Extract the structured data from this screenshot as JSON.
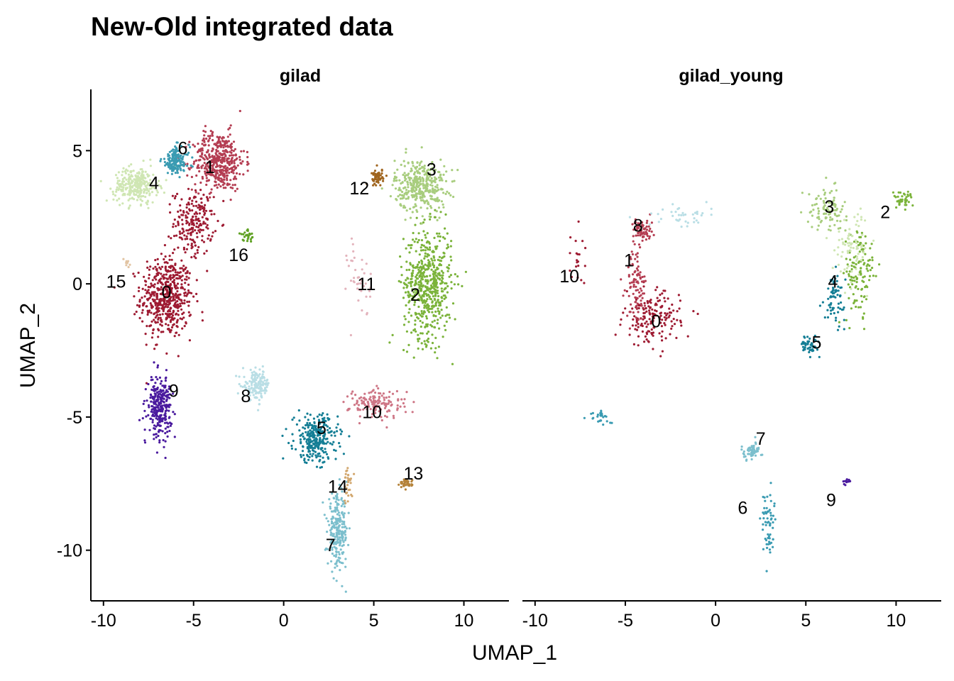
{
  "chart_data": {
    "type": "scatter",
    "title": "New-Old integrated data",
    "xlabel": "UMAP_1",
    "ylabel": "UMAP_2",
    "xlim": [
      -10.7,
      12.5
    ],
    "ylim": [
      -11.9,
      7.3
    ],
    "x_ticks": [
      -10,
      -5,
      0,
      5,
      10
    ],
    "x_tick_labels": [
      "-10",
      "-5",
      "0",
      "5",
      "10"
    ],
    "y_ticks": [
      5,
      0,
      -5,
      -10
    ],
    "y_tick_labels": [
      "5",
      "0",
      "-5",
      "-10"
    ],
    "grid": false,
    "legend": "none",
    "panels": [
      {
        "name": "gilad",
        "clusters": [
          {
            "id": "0",
            "color": "#9E1B32",
            "center": [
              -6.5,
              -0.5
            ],
            "spread": [
              1.3,
              1.4
            ],
            "n": 520
          },
          {
            "id": "0",
            "color": "#9E1B32",
            "center": [
              -5.0,
              2.3
            ],
            "spread": [
              1.0,
              1.1
            ],
            "n": 200
          },
          {
            "id": "1",
            "color": "#B43D52",
            "center": [
              -3.6,
              4.6
            ],
            "spread": [
              1.3,
              1.0
            ],
            "n": 430
          },
          {
            "id": "2",
            "color": "#7BB33A",
            "center": [
              8.0,
              0.0
            ],
            "spread": [
              1.2,
              1.9
            ],
            "n": 560
          },
          {
            "id": "3",
            "color": "#A8CD7E",
            "center": [
              7.6,
              3.7
            ],
            "spread": [
              1.3,
              0.9
            ],
            "n": 360
          },
          {
            "id": "4",
            "color": "#CFE6B3",
            "center": [
              -8.2,
              3.7
            ],
            "spread": [
              1.1,
              0.6
            ],
            "n": 290
          },
          {
            "id": "5",
            "color": "#147E95",
            "center": [
              1.8,
              -5.8
            ],
            "spread": [
              1.1,
              0.8
            ],
            "n": 280
          },
          {
            "id": "6",
            "color": "#3A9BB2",
            "center": [
              -6.0,
              4.6
            ],
            "spread": [
              0.7,
              0.5
            ],
            "n": 150
          },
          {
            "id": "7",
            "color": "#7CBFCD",
            "center": [
              3.0,
              -9.3
            ],
            "spread": [
              0.5,
              1.2
            ],
            "n": 230
          },
          {
            "id": "8",
            "color": "#B9DEE5",
            "center": [
              -1.5,
              -3.8
            ],
            "spread": [
              0.7,
              0.5
            ],
            "n": 150
          },
          {
            "id": "9",
            "color": "#4A1A9E",
            "center": [
              -6.9,
              -4.6
            ],
            "spread": [
              0.6,
              1.0
            ],
            "n": 280
          },
          {
            "id": "10",
            "color": "#CE7686",
            "center": [
              5.2,
              -4.5
            ],
            "spread": [
              1.4,
              0.5
            ],
            "n": 150
          },
          {
            "id": "11",
            "color": "#E3B3BC",
            "center": [
              4.2,
              0.2
            ],
            "spread": [
              0.6,
              1.4
            ],
            "n": 40
          },
          {
            "id": "12",
            "color": "#A0651F",
            "center": [
              5.2,
              4.0
            ],
            "spread": [
              0.3,
              0.3
            ],
            "n": 50
          },
          {
            "id": "13",
            "color": "#B5833A",
            "center": [
              6.8,
              -7.5
            ],
            "spread": [
              0.3,
              0.15
            ],
            "n": 40
          },
          {
            "id": "14",
            "color": "#D2A76E",
            "center": [
              3.6,
              -7.6
            ],
            "spread": [
              0.3,
              0.6
            ],
            "n": 30
          },
          {
            "id": "15",
            "color": "#E2C4A3",
            "center": [
              -8.7,
              0.8
            ],
            "spread": [
              0.2,
              0.2
            ],
            "n": 8
          },
          {
            "id": "16",
            "color": "#5FA123",
            "center": [
              -2.0,
              1.8
            ],
            "spread": [
              0.4,
              0.2
            ],
            "n": 25
          }
        ],
        "labels": [
          {
            "text": "0",
            "x": -6.5,
            "y": -0.3
          },
          {
            "text": "1",
            "x": -4.1,
            "y": 4.4
          },
          {
            "text": "2",
            "x": 7.3,
            "y": -0.4
          },
          {
            "text": "3",
            "x": 8.2,
            "y": 4.3
          },
          {
            "text": "4",
            "x": -7.2,
            "y": 3.8
          },
          {
            "text": "5",
            "x": 2.1,
            "y": -5.4
          },
          {
            "text": "6",
            "x": -5.6,
            "y": 5.1
          },
          {
            "text": "7",
            "x": 2.6,
            "y": -9.8
          },
          {
            "text": "8",
            "x": -2.1,
            "y": -4.2
          },
          {
            "text": "9",
            "x": -6.1,
            "y": -4.0
          },
          {
            "text": "10",
            "x": 4.9,
            "y": -4.8
          },
          {
            "text": "11",
            "x": 4.6,
            "y": 0.0
          },
          {
            "text": "12",
            "x": 4.2,
            "y": 3.6
          },
          {
            "text": "13",
            "x": 7.2,
            "y": -7.1
          },
          {
            "text": "14",
            "x": 3.0,
            "y": -7.6
          },
          {
            "text": "15",
            "x": -9.3,
            "y": 0.1
          },
          {
            "text": "16",
            "x": -2.5,
            "y": 1.1
          }
        ]
      },
      {
        "name": "gilad_young",
        "clusters": [
          {
            "id": "0",
            "color": "#9E1B32",
            "center": [
              -3.5,
              -1.3
            ],
            "spread": [
              1.4,
              0.9
            ],
            "n": 170
          },
          {
            "id": "1",
            "color": "#B43D52",
            "center": [
              -4.4,
              0.0
            ],
            "spread": [
              0.5,
              1.2
            ],
            "n": 90
          },
          {
            "id": "2",
            "color": "#7BB33A",
            "center": [
              8.0,
              0.3
            ],
            "spread": [
              0.8,
              1.6
            ],
            "n": 120
          },
          {
            "id": "2",
            "color": "#7BB33A",
            "center": [
              10.4,
              3.2
            ],
            "spread": [
              0.5,
              0.3
            ],
            "n": 40
          },
          {
            "id": "3",
            "color": "#A8CD7E",
            "center": [
              6.2,
              2.8
            ],
            "spread": [
              1.0,
              0.7
            ],
            "n": 100
          },
          {
            "id": "3",
            "color": "#CFE6B3",
            "center": [
              7.6,
              1.5
            ],
            "spread": [
              0.9,
              1.2
            ],
            "n": 70
          },
          {
            "id": "4",
            "color": "#147E95",
            "center": [
              6.6,
              -0.5
            ],
            "spread": [
              0.5,
              0.8
            ],
            "n": 70
          },
          {
            "id": "5",
            "color": "#147E95",
            "center": [
              5.2,
              -2.3
            ],
            "spread": [
              0.5,
              0.3
            ],
            "n": 50
          },
          {
            "id": "6",
            "color": "#3A9BB2",
            "center": [
              2.9,
              -9.0
            ],
            "spread": [
              0.3,
              1.2
            ],
            "n": 60
          },
          {
            "id": "7",
            "color": "#7CBFCD",
            "center": [
              2.0,
              -6.3
            ],
            "spread": [
              0.5,
              0.3
            ],
            "n": 60
          },
          {
            "id": "8",
            "color": "#B43D52",
            "center": [
              -4.0,
              2.0
            ],
            "spread": [
              0.5,
              0.4
            ],
            "n": 70
          },
          {
            "id": "9",
            "color": "#4A1A9E",
            "center": [
              7.2,
              -7.4
            ],
            "spread": [
              0.2,
              0.1
            ],
            "n": 12
          },
          {
            "id": "10",
            "color": "#9E1B32",
            "center": [
              -7.8,
              1.0
            ],
            "spread": [
              0.5,
              1.0
            ],
            "n": 20
          },
          {
            "id": "11",
            "color": "#B9DEE5",
            "center": [
              -2.0,
              2.5
            ],
            "spread": [
              1.6,
              0.4
            ],
            "n": 40
          },
          {
            "id": "12",
            "color": "#3A9BB2",
            "center": [
              -6.3,
              -5.0
            ],
            "spread": [
              0.6,
              0.3
            ],
            "n": 25
          }
        ],
        "labels": [
          {
            "text": "0",
            "x": -3.3,
            "y": -1.4
          },
          {
            "text": "1",
            "x": -4.8,
            "y": 0.9
          },
          {
            "text": "2",
            "x": 9.4,
            "y": 2.7
          },
          {
            "text": "3",
            "x": 6.3,
            "y": 2.9
          },
          {
            "text": "4",
            "x": 6.5,
            "y": 0.1
          },
          {
            "text": "5",
            "x": 5.6,
            "y": -2.2
          },
          {
            "text": "6",
            "x": 1.5,
            "y": -8.4
          },
          {
            "text": "7",
            "x": 2.5,
            "y": -5.8
          },
          {
            "text": "8",
            "x": -4.3,
            "y": 2.2
          },
          {
            "text": "9",
            "x": 6.4,
            "y": -8.1
          },
          {
            "text": "10",
            "x": -8.1,
            "y": 0.3
          }
        ]
      }
    ]
  }
}
